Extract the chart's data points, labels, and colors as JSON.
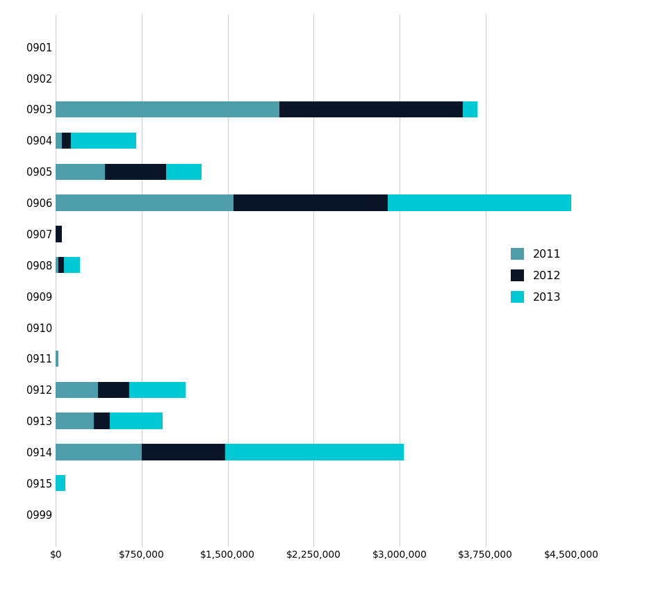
{
  "categories": [
    "0901",
    "0902",
    "0903",
    "0904",
    "0905",
    "0906",
    "0907",
    "0908",
    "0909",
    "0910",
    "0911",
    "0912",
    "0913",
    "0914",
    "0915",
    "0999"
  ],
  "series": {
    "2011": [
      0,
      0,
      1950000,
      50000,
      430000,
      1550000,
      0,
      25000,
      0,
      0,
      20000,
      370000,
      330000,
      750000,
      0,
      0
    ],
    "2012": [
      0,
      0,
      1600000,
      80000,
      530000,
      1350000,
      55000,
      45000,
      0,
      0,
      0,
      270000,
      140000,
      730000,
      0,
      0
    ],
    "2013": [
      0,
      0,
      130000,
      570000,
      310000,
      1600000,
      0,
      140000,
      0,
      0,
      0,
      490000,
      460000,
      1560000,
      80000,
      0
    ]
  },
  "colors": {
    "2011": "#4e9dab",
    "2012": "#0a1628",
    "2013": "#00c8d4"
  },
  "xlim": [
    0,
    4500000
  ],
  "xticks": [
    0,
    750000,
    1500000,
    2250000,
    3000000,
    3750000,
    4500000
  ],
  "background_color": "#ffffff",
  "grid_color": "#cccccc",
  "legend_labels": [
    "2011",
    "2012",
    "2013"
  ],
  "bar_height": 0.52
}
